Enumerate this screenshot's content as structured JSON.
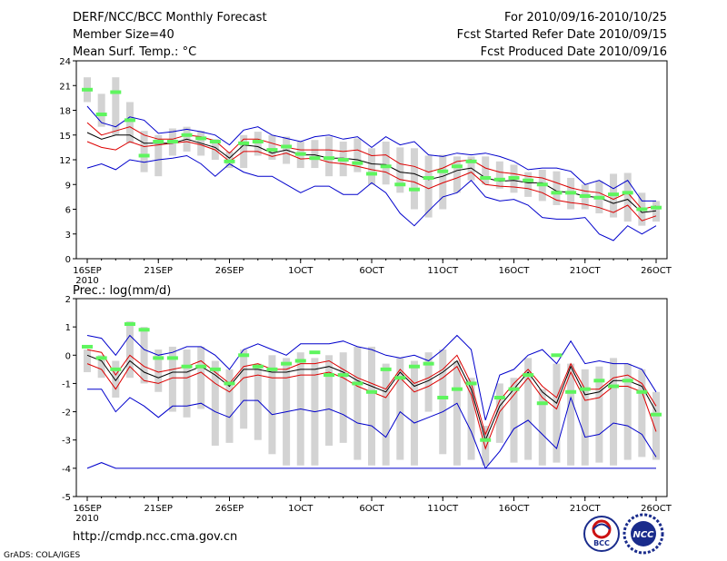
{
  "header": {
    "title": "DERF/NCC/BCC Monthly Forecast",
    "member_size": "Member Size=40",
    "variable1": "Mean Surf. Temp.: °C",
    "period": "For 2010/09/16-2010/10/25",
    "fcst_started": "Fcst Started Refer Date 2010/09/15",
    "fcst_produced": "Fcst Produced Date 2010/09/16"
  },
  "footer": {
    "url": "http://cmdp.ncc.cma.gov.cn",
    "credit": "GrADS: COLA/IGES",
    "logo_bcc": "BCC",
    "logo_ncc": "NCC"
  },
  "colors": {
    "box": "#d3d3d3",
    "obs": "#5ef55e",
    "envelope": "#0000cc",
    "inner": "#dd0000",
    "mean": "#000000"
  },
  "chart_data": [
    {
      "type": "box-plume",
      "title": "Mean Surf. Temp.: °C",
      "ylim": [
        0,
        24
      ],
      "yticks": [
        0,
        3,
        6,
        9,
        12,
        15,
        18,
        21,
        24
      ],
      "xtick_labels": [
        "16SEP",
        "21SEP",
        "26SEP",
        "1OCT",
        "6OCT",
        "11OCT",
        "16OCT",
        "21OCT",
        "26OCT"
      ],
      "xtick_days": [
        0,
        5,
        10,
        15,
        20,
        25,
        30,
        35,
        40
      ],
      "xyear_label": "2010",
      "days": 40,
      "series": {
        "max": [
          18.5,
          16.5,
          16,
          17.2,
          16.8,
          15.2,
          15.4,
          15.7,
          15.4,
          15.0,
          13.8,
          15.6,
          16.0,
          15.0,
          14.6,
          14.2,
          14.8,
          15.0,
          14.5,
          14.8,
          13.5,
          14.8,
          13.8,
          14.2,
          12.6,
          12.4,
          12.8,
          12.6,
          12.8,
          12.4,
          11.8,
          10.8,
          11.0,
          11.0,
          10.6,
          9.0,
          9.5,
          8.5,
          9.5,
          7.0,
          7.0
        ],
        "upper": [
          16.5,
          15.0,
          15.5,
          16.0,
          15.0,
          14.5,
          14.5,
          15.0,
          14.8,
          14.3,
          12.8,
          14.5,
          14.5,
          14.0,
          13.5,
          13.2,
          13.2,
          13.2,
          13.0,
          13.2,
          12.5,
          12.6,
          11.5,
          11.2,
          10.5,
          11.0,
          11.8,
          12.0,
          11.0,
          10.5,
          10.3,
          10.0,
          9.8,
          9.2,
          8.6,
          8.2,
          8.0,
          7.2,
          8.0,
          6.0,
          6.4
        ],
        "mean": [
          15.3,
          14.5,
          15.0,
          15.0,
          14.0,
          14.0,
          14.0,
          14.5,
          14.0,
          13.5,
          12.2,
          13.8,
          13.6,
          12.8,
          13.2,
          12.6,
          12.6,
          12.2,
          12.2,
          12.0,
          11.5,
          11.4,
          10.5,
          10.3,
          9.6,
          10.0,
          10.7,
          11.0,
          9.8,
          9.4,
          9.5,
          9.2,
          9.2,
          8.2,
          8.0,
          7.6,
          7.4,
          6.7,
          7.2,
          5.6,
          5.8
        ],
        "lower": [
          14.2,
          13.5,
          13.2,
          14.2,
          13.6,
          13.8,
          14.0,
          14.2,
          13.8,
          13.2,
          11.8,
          13.0,
          13.0,
          12.4,
          12.8,
          12.1,
          12.2,
          11.7,
          11.5,
          11.2,
          10.8,
          10.5,
          9.6,
          9.3,
          8.5,
          9.2,
          9.8,
          10.5,
          9.0,
          8.8,
          8.7,
          8.5,
          8.0,
          7.1,
          6.8,
          6.6,
          6.2,
          5.6,
          6.5,
          4.6,
          5.2
        ],
        "min": [
          11.0,
          11.5,
          10.8,
          12.0,
          11.7,
          12.0,
          12.2,
          12.5,
          11.5,
          10.0,
          11.5,
          10.5,
          10.0,
          10.0,
          9.0,
          8.0,
          8.8,
          8.8,
          7.8,
          7.8,
          9.2,
          8.0,
          5.5,
          4.0,
          5.8,
          7.5,
          8.0,
          9.5,
          7.5,
          7.0,
          7.2,
          6.5,
          5.0,
          4.8,
          4.8,
          5.0,
          3.0,
          2.2,
          4.0,
          3.0,
          4.0
        ],
        "box_top": [
          22,
          20,
          22,
          19,
          15.5,
          15,
          15.8,
          16,
          15.5,
          14.5,
          13,
          15,
          15.4,
          15,
          14.8,
          14.2,
          14.4,
          14.8,
          14.2,
          14.6,
          13.4,
          14.2,
          13.5,
          13.4,
          12.5,
          12.6,
          12.4,
          12.4,
          12.4,
          11.8,
          11.4,
          10.5,
          10.8,
          10.6,
          9.8,
          9.0,
          9.4,
          10.3,
          10.4,
          8.0,
          7.0
        ],
        "box_bottom": [
          19,
          16,
          15,
          14,
          10.5,
          10,
          12.5,
          13,
          12.5,
          12,
          11,
          11,
          12.5,
          12,
          11.5,
          11,
          11,
          10,
          10,
          10.5,
          9,
          9,
          8,
          6,
          5,
          6,
          8,
          9.5,
          9,
          8.5,
          8,
          7.5,
          7.0,
          6.5,
          6,
          6,
          5.5,
          5,
          4.5,
          4,
          4.5
        ],
        "obs": [
          20.5,
          17.5,
          20.2,
          16.8,
          12.5,
          14.2,
          14.2,
          15.0,
          14.6,
          14.2,
          11.8,
          14.0,
          14.2,
          13.2,
          13.6,
          12.7,
          12.2,
          12.2,
          12.0,
          11.6,
          10.3,
          11.2,
          9.0,
          8.4,
          9.8,
          10.6,
          11.2,
          11.8,
          9.8,
          9.6,
          9.8,
          9.5,
          9.0,
          8.0,
          8.0,
          7.6,
          7.4,
          7.8,
          8.0,
          6.0,
          6.2
        ]
      }
    },
    {
      "type": "box-plume",
      "title": "Prec.: log(mm/d)",
      "ylim": [
        -5,
        2
      ],
      "yticks": [
        -5,
        -4,
        -3,
        -2,
        -1,
        0,
        1,
        2
      ],
      "xtick_labels": [
        "16SEP",
        "21SEP",
        "26SEP",
        "1OCT",
        "6OCT",
        "11OCT",
        "16OCT",
        "21OCT",
        "26OCT"
      ],
      "xtick_days": [
        0,
        5,
        10,
        15,
        20,
        25,
        30,
        35,
        40
      ],
      "xyear_label": "2010",
      "days": 40,
      "series": {
        "max": [
          0.7,
          0.6,
          0.0,
          0.7,
          0.2,
          0.0,
          0.1,
          0.3,
          0.3,
          0.0,
          -0.5,
          0.2,
          0.4,
          0.2,
          0.0,
          0.4,
          0.4,
          0.4,
          0.5,
          0.3,
          0.2,
          0.0,
          -0.1,
          0.0,
          -0.2,
          0.2,
          0.7,
          0.2,
          -2.3,
          -0.7,
          -0.5,
          0.0,
          0.2,
          -0.3,
          0.5,
          -0.3,
          -0.2,
          -0.3,
          -0.3,
          -0.5,
          -1.3
        ],
        "upper": [
          0.2,
          0.1,
          -0.7,
          0.0,
          -0.4,
          -0.6,
          -0.5,
          -0.4,
          -0.2,
          -0.6,
          -1.0,
          -0.4,
          -0.3,
          -0.5,
          -0.5,
          -0.3,
          -0.3,
          -0.2,
          -0.5,
          -0.8,
          -1.0,
          -1.2,
          -0.5,
          -1.0,
          -0.8,
          -0.5,
          0.0,
          -1.0,
          -2.8,
          -1.6,
          -1.0,
          -0.5,
          -1.1,
          -1.5,
          -0.3,
          -1.2,
          -1.2,
          -0.8,
          -0.7,
          -1.0,
          -1.8
        ],
        "mean": [
          0.0,
          -0.2,
          -0.9,
          -0.2,
          -0.6,
          -0.8,
          -0.6,
          -0.6,
          -0.4,
          -0.7,
          -1.1,
          -0.5,
          -0.5,
          -0.6,
          -0.6,
          -0.5,
          -0.5,
          -0.4,
          -0.6,
          -0.9,
          -1.1,
          -1.3,
          -0.6,
          -1.1,
          -0.9,
          -0.6,
          -0.2,
          -1.2,
          -3.0,
          -1.8,
          -1.2,
          -0.6,
          -1.3,
          -1.7,
          -0.4,
          -1.4,
          -1.3,
          -0.9,
          -0.9,
          -1.1,
          -2.0
        ],
        "lower": [
          -0.3,
          -0.5,
          -1.2,
          -0.4,
          -0.9,
          -1.0,
          -0.8,
          -0.8,
          -0.6,
          -1.0,
          -1.3,
          -0.8,
          -0.7,
          -0.8,
          -0.8,
          -0.7,
          -0.7,
          -0.6,
          -0.8,
          -1.1,
          -1.3,
          -1.5,
          -0.8,
          -1.3,
          -1.1,
          -0.8,
          -0.4,
          -1.4,
          -3.3,
          -2.0,
          -1.4,
          -0.8,
          -1.5,
          -1.9,
          -0.6,
          -1.6,
          -1.5,
          -1.1,
          -1.1,
          -1.3,
          -2.7
        ],
        "min": [
          -1.2,
          -1.2,
          -2.0,
          -1.5,
          -1.8,
          -2.2,
          -1.8,
          -1.8,
          -1.7,
          -2.0,
          -2.2,
          -1.6,
          -1.6,
          -2.1,
          -2.0,
          -1.9,
          -2.0,
          -1.9,
          -2.1,
          -2.4,
          -2.5,
          -2.9,
          -2.0,
          -2.4,
          -2.2,
          -2.0,
          -1.7,
          -2.7,
          -4.0,
          -3.4,
          -2.6,
          -2.3,
          -2.8,
          -3.3,
          -1.5,
          -2.9,
          -2.8,
          -2.4,
          -2.5,
          -2.8,
          -3.6
        ],
        "min_floor": [
          -4.0,
          -3.8,
          -4.0,
          -4.0,
          -4.0,
          -4.0,
          -4.0,
          -4.0,
          -4.0,
          -4.0,
          -4.0,
          -4.0,
          -4.0,
          -4.0,
          -4.0,
          -4.0,
          -4.0,
          -4.0,
          -4.0,
          -4.0,
          -4.0,
          -4.0,
          -4.0,
          -4.0,
          -4.0,
          -4.0,
          -4.0,
          -4.0,
          -4.0,
          -4.0,
          -4.0,
          -4.0,
          -4.0,
          -4.0,
          -4.0,
          -4.0,
          -4.0,
          -4.0,
          -4.0,
          -4.0,
          -4.0
        ],
        "box_top": [
          0.2,
          0.0,
          -0.2,
          1.2,
          1.0,
          0.2,
          0.3,
          0.2,
          0.3,
          -0.2,
          -0.5,
          0.2,
          -0.3,
          0.0,
          -0.1,
          0.1,
          -0.1,
          0.0,
          0.1,
          0.3,
          0.3,
          -0.3,
          -0.1,
          -0.2,
          0.1,
          0.2,
          -0.2,
          -0.8,
          -2.5,
          -1.0,
          -0.8,
          -0.1,
          -1.2,
          -0.3,
          -0.3,
          -0.5,
          -0.4,
          -0.1,
          -0.3,
          -0.5,
          -1.3
        ],
        "box_bottom": [
          -0.6,
          -0.8,
          -1.5,
          -0.8,
          -1.0,
          -1.3,
          -2.0,
          -2.2,
          -1.9,
          -3.2,
          -3.1,
          -2.6,
          -3.0,
          -3.5,
          -3.9,
          -3.9,
          -3.9,
          -3.2,
          -3.1,
          -3.7,
          -3.9,
          -3.9,
          -3.7,
          -3.9,
          -2.0,
          -3.5,
          -3.9,
          -3.7,
          -3.9,
          -3.1,
          -3.8,
          -3.7,
          -3.9,
          -3.8,
          -3.9,
          -3.9,
          -3.8,
          -3.9,
          -3.7,
          -3.6,
          -3.7
        ],
        "obs": [
          0.3,
          -0.1,
          -0.5,
          1.1,
          0.9,
          -0.1,
          -0.1,
          -0.4,
          -0.4,
          -0.5,
          -1.0,
          0.0,
          -0.4,
          -0.5,
          -0.3,
          -0.2,
          0.1,
          -0.7,
          -0.7,
          -1.0,
          -1.3,
          -0.5,
          -0.8,
          -0.4,
          -0.3,
          -1.5,
          -1.2,
          -1.0,
          -3.0,
          -1.5,
          -1.2,
          -0.7,
          -1.7,
          0.0,
          -1.3,
          -1.2,
          -0.9,
          -1.1,
          -0.9,
          -1.3,
          -2.1
        ]
      }
    }
  ]
}
